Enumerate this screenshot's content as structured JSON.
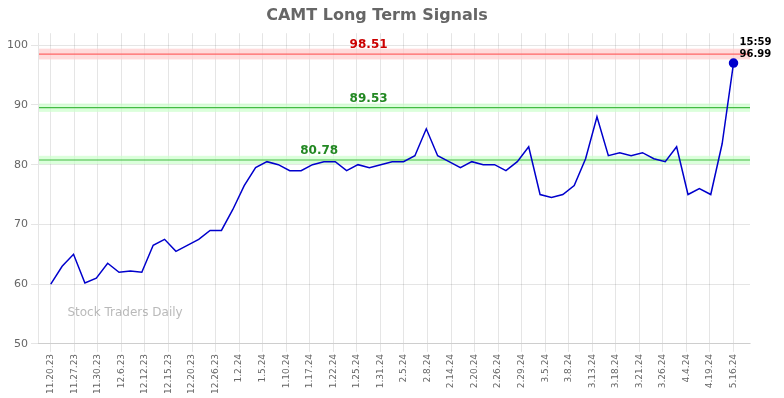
{
  "chart_data": {
    "type": "line",
    "title": "CAMT Long Term Signals",
    "x": [
      0,
      0.4833,
      0.9667,
      1.45,
      1.9333,
      2.4167,
      2.9,
      3.3833,
      3.8667,
      4.35,
      4.8333,
      5.3167,
      5.8,
      6.2833,
      6.7667,
      7.25,
      7.7333,
      8.2167,
      8.7,
      9.1833,
      9.6667,
      10.15,
      10.6333,
      11.1167,
      11.6,
      12.0833,
      12.5667,
      13.05,
      13.5333,
      14.0167,
      14.5,
      14.9833,
      15.4667,
      15.95,
      16.4333,
      16.9167,
      17.4,
      17.8833,
      18.3667,
      18.85,
      19.3333,
      19.8167,
      20.3,
      20.7833,
      21.2667,
      21.75,
      22.2333,
      22.7167,
      23.2,
      23.6833,
      24.1667,
      24.65,
      25.1333,
      25.6167,
      26.1,
      26.5833,
      27.0667,
      27.55,
      28.0333,
      28.5167,
      29
    ],
    "series": [
      {
        "type": "line",
        "color": "#0000cc",
        "values": [
          60.0,
          63.0,
          65.0,
          60.2,
          61.0,
          63.5,
          62.0,
          62.2,
          62.0,
          66.5,
          67.5,
          65.5,
          66.5,
          67.5,
          69.0,
          69.0,
          72.5,
          76.5,
          79.5,
          80.5,
          80.0,
          79.0,
          79.0,
          80.0,
          80.5,
          80.5,
          79.0,
          80.0,
          79.5,
          80.0,
          80.5,
          80.5,
          81.5,
          86.0,
          81.5,
          80.5,
          79.5,
          80.5,
          80.0,
          80.0,
          79.0,
          80.5,
          83.0,
          75.0,
          74.5,
          75.0,
          76.5,
          81.0,
          88.0,
          81.5,
          82.0,
          81.5,
          82.0,
          81.0,
          80.5,
          83.0,
          75.0,
          76.0,
          75.0,
          83.5,
          97.0
        ]
      },
      {
        "type": "scatter",
        "color": "#0000cc",
        "marker": "circle",
        "x": [
          29
        ],
        "values": [
          97.0
        ]
      }
    ],
    "hlines": [
      {
        "value": 98.51,
        "color": "#ff6666",
        "band": [
          97.61,
          99.41
        ],
        "band_color": "#ffcccc"
      },
      {
        "value": 89.53,
        "color": "#44bb44",
        "band": [
          88.83,
          90.23
        ],
        "band_color": "#ccffcc"
      },
      {
        "value": 80.78,
        "color": "#44bb44",
        "band": [
          80.08,
          81.48
        ],
        "band_color": "#ccffcc"
      }
    ],
    "annotations": [
      {
        "text": "98.51",
        "x": 13.5,
        "y": 98.51,
        "color": "#cc0000"
      },
      {
        "text": "89.53",
        "x": 13.5,
        "y": 89.53,
        "color": "#228822"
      },
      {
        "text": "80.78",
        "x": 11.4,
        "y": 80.78,
        "color": "#228822"
      },
      {
        "text": [
          "15:59",
          "96.99"
        ],
        "x": 29,
        "y": 97.0,
        "color": "#000000"
      }
    ],
    "watermark": {
      "text": "Stock Traders Daily",
      "color": "#808080"
    },
    "xlim": [
      -0.5,
      29.7
    ],
    "xticks": [
      {
        "value": 0,
        "label": "11.20.23"
      },
      {
        "value": 1,
        "label": "11.27.23"
      },
      {
        "value": 2,
        "label": "11.30.23"
      },
      {
        "value": 3,
        "label": "12.6.23"
      },
      {
        "value": 4,
        "label": "12.12.23"
      },
      {
        "value": 5,
        "label": "12.15.23"
      },
      {
        "value": 6,
        "label": "12.20.23"
      },
      {
        "value": 7,
        "label": "12.26.23"
      },
      {
        "value": 8,
        "label": "1.2.24"
      },
      {
        "value": 9,
        "label": "1.5.24"
      },
      {
        "value": 10,
        "label": "1.10.24"
      },
      {
        "value": 11,
        "label": "1.17.24"
      },
      {
        "value": 12,
        "label": "1.22.24"
      },
      {
        "value": 13,
        "label": "1.25.24"
      },
      {
        "value": 14,
        "label": "1.31.24"
      },
      {
        "value": 15,
        "label": "2.5.24"
      },
      {
        "value": 16,
        "label": "2.8.24"
      },
      {
        "value": 17,
        "label": "2.14.24"
      },
      {
        "value": 18,
        "label": "2.20.24"
      },
      {
        "value": 19,
        "label": "2.26.24"
      },
      {
        "value": 20,
        "label": "2.29.24"
      },
      {
        "value": 21,
        "label": "3.5.24"
      },
      {
        "value": 22,
        "label": "3.8.24"
      },
      {
        "value": 23,
        "label": "3.13.24"
      },
      {
        "value": 24,
        "label": "3.18.24"
      },
      {
        "value": 25,
        "label": "3.21.24"
      },
      {
        "value": 26,
        "label": "3.26.24"
      },
      {
        "value": 27,
        "label": "4.4.24"
      },
      {
        "value": 28,
        "label": "4.19.24"
      },
      {
        "value": 29,
        "label": "5.16.24"
      }
    ],
    "ylim": [
      50,
      102
    ],
    "yticks": [
      50,
      60,
      70,
      80,
      90,
      100
    ],
    "grid": true
  }
}
